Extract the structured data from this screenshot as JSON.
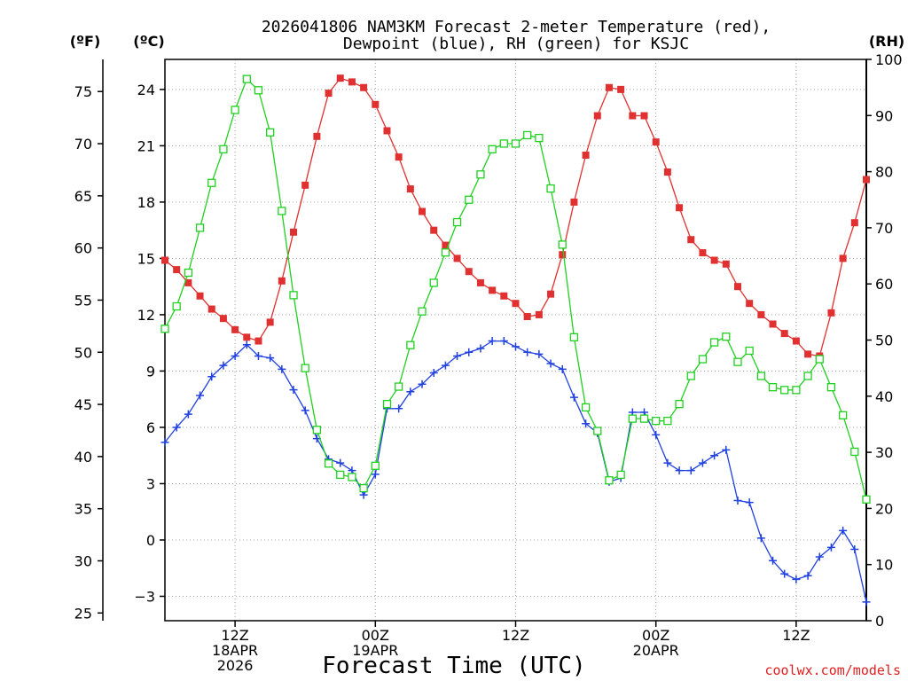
{
  "chart_data": {
    "type": "line",
    "title_line1": "2026041806 NAM3KM Forecast 2-meter Temperature (red),",
    "title_line2": "Dewpoint (blue), RH (green) for KSJC",
    "xlabel": "Forecast Time (UTC)",
    "credit": "coolwx.com/models",
    "unit_left_f": "(ºF)",
    "unit_left_c": "(ºC)",
    "unit_right": "(RH)",
    "x_hours_range": [
      0,
      60
    ],
    "c_range": [
      -4.3,
      25.6
    ],
    "rh_range": [
      0,
      100
    ],
    "c_ticks": [
      -3,
      0,
      3,
      6,
      9,
      12,
      15,
      18,
      21,
      24
    ],
    "c_tick_labels": [
      "−3",
      "0",
      "3",
      "6",
      "9",
      "12",
      "15",
      "18",
      "21",
      "24"
    ],
    "f_ticks": [
      25,
      30,
      35,
      40,
      45,
      50,
      55,
      60,
      65,
      70,
      75
    ],
    "rh_ticks": [
      0,
      10,
      20,
      30,
      40,
      50,
      60,
      70,
      80,
      90,
      100
    ],
    "x_ticks": [
      {
        "hour": 6,
        "labels": [
          "12Z",
          "18APR",
          "2026"
        ]
      },
      {
        "hour": 18,
        "labels": [
          "00Z",
          "19APR"
        ]
      },
      {
        "hour": 30,
        "labels": [
          "12Z"
        ]
      },
      {
        "hour": 42,
        "labels": [
          "00Z",
          "20APR"
        ]
      },
      {
        "hour": 54,
        "labels": [
          "12Z"
        ]
      }
    ],
    "series": [
      {
        "name": "Temperature (ºC)",
        "color": "#e03030",
        "marker": "filled-square",
        "axis": "c",
        "x": [
          0,
          1,
          2,
          3,
          4,
          5,
          6,
          7,
          8,
          9,
          10,
          11,
          12,
          13,
          14,
          15,
          16,
          17,
          18,
          19,
          20,
          21,
          22,
          23,
          24,
          25,
          26,
          27,
          28,
          29,
          30,
          31,
          32,
          33,
          34,
          35,
          36,
          37,
          38,
          39,
          40,
          41,
          42,
          43,
          44,
          45,
          46,
          47,
          48,
          49,
          50,
          51,
          52,
          53,
          54,
          55,
          56,
          57,
          58,
          59,
          60
        ],
        "values": [
          14.9,
          14.4,
          13.7,
          13.0,
          12.3,
          11.8,
          11.2,
          10.8,
          10.6,
          11.6,
          13.8,
          16.4,
          18.9,
          21.5,
          23.8,
          24.6,
          24.4,
          24.1,
          23.2,
          21.8,
          20.4,
          18.7,
          17.5,
          16.5,
          15.7,
          15.0,
          14.3,
          13.7,
          13.3,
          13.0,
          12.6,
          11.9,
          12.0,
          13.1,
          15.2,
          18.0,
          20.5,
          22.6,
          24.1,
          24.0,
          22.6,
          22.6,
          21.2,
          19.6,
          17.7,
          16.0,
          15.3,
          14.9,
          14.7,
          13.5,
          12.6,
          12.0,
          11.5,
          11.0,
          10.6,
          9.9,
          9.8,
          12.1,
          15.0,
          16.9,
          19.2
        ]
      },
      {
        "name": "Dewpoint (ºC)",
        "color": "#2040e0",
        "marker": "plus",
        "axis": "c",
        "x": [
          0,
          1,
          2,
          3,
          4,
          5,
          6,
          7,
          8,
          9,
          10,
          11,
          12,
          13,
          14,
          15,
          16,
          17,
          18,
          19,
          20,
          21,
          22,
          23,
          24,
          25,
          26,
          27,
          28,
          29,
          30,
          31,
          32,
          33,
          34,
          35,
          36,
          37,
          38,
          39,
          40,
          41,
          42,
          43,
          44,
          45,
          46,
          47,
          48,
          49,
          50,
          51,
          52,
          53,
          54,
          55,
          56,
          57,
          58,
          59,
          60
        ],
        "values": [
          5.2,
          6.0,
          6.7,
          7.7,
          8.7,
          9.3,
          9.8,
          10.4,
          9.8,
          9.7,
          9.1,
          8.0,
          6.9,
          5.4,
          4.3,
          4.1,
          3.7,
          2.4,
          3.5,
          7.0,
          7.0,
          7.9,
          8.3,
          8.9,
          9.3,
          9.8,
          10.0,
          10.2,
          10.6,
          10.6,
          10.3,
          10.0,
          9.9,
          9.4,
          9.1,
          7.6,
          6.2,
          5.7,
          3.1,
          3.3,
          6.8,
          6.8,
          5.6,
          4.1,
          3.7,
          3.7,
          4.1,
          4.5,
          4.8,
          2.1,
          2.0,
          0.1,
          -1.1,
          -1.8,
          -2.1,
          -1.9,
          -0.9,
          -0.4,
          0.5,
          -0.5,
          -3.3
        ]
      },
      {
        "name": "RH (%)",
        "color": "#20d020",
        "marker": "open-square",
        "axis": "rh",
        "x": [
          0,
          1,
          2,
          3,
          4,
          5,
          6,
          7,
          8,
          9,
          10,
          11,
          12,
          13,
          14,
          15,
          16,
          17,
          18,
          19,
          20,
          21,
          22,
          23,
          24,
          25,
          26,
          27,
          28,
          29,
          30,
          31,
          32,
          33,
          34,
          35,
          36,
          37,
          38,
          39,
          40,
          41,
          42,
          43,
          44,
          45,
          46,
          47,
          48,
          49,
          50,
          51,
          52,
          53,
          54,
          55,
          56,
          57,
          58,
          59,
          60
        ],
        "values": [
          52,
          56,
          62,
          70,
          78,
          84,
          91,
          96.5,
          94.5,
          87,
          73,
          58,
          45,
          34,
          28,
          26,
          25.6,
          23.6,
          27.6,
          38.6,
          41.7,
          49.1,
          55.1,
          60.2,
          65.6,
          71,
          75,
          79.5,
          84,
          85,
          85,
          86.5,
          86,
          77,
          67,
          50.5,
          38,
          33.8,
          25,
          26,
          36,
          36,
          35.6,
          35.6,
          38.6,
          43.6,
          46.6,
          49.6,
          50.6,
          46.1,
          48.1,
          43.6,
          41.6,
          41.1,
          41.1,
          43.6,
          46.6,
          41.6,
          36.6,
          30.1,
          21.6
        ]
      }
    ]
  }
}
